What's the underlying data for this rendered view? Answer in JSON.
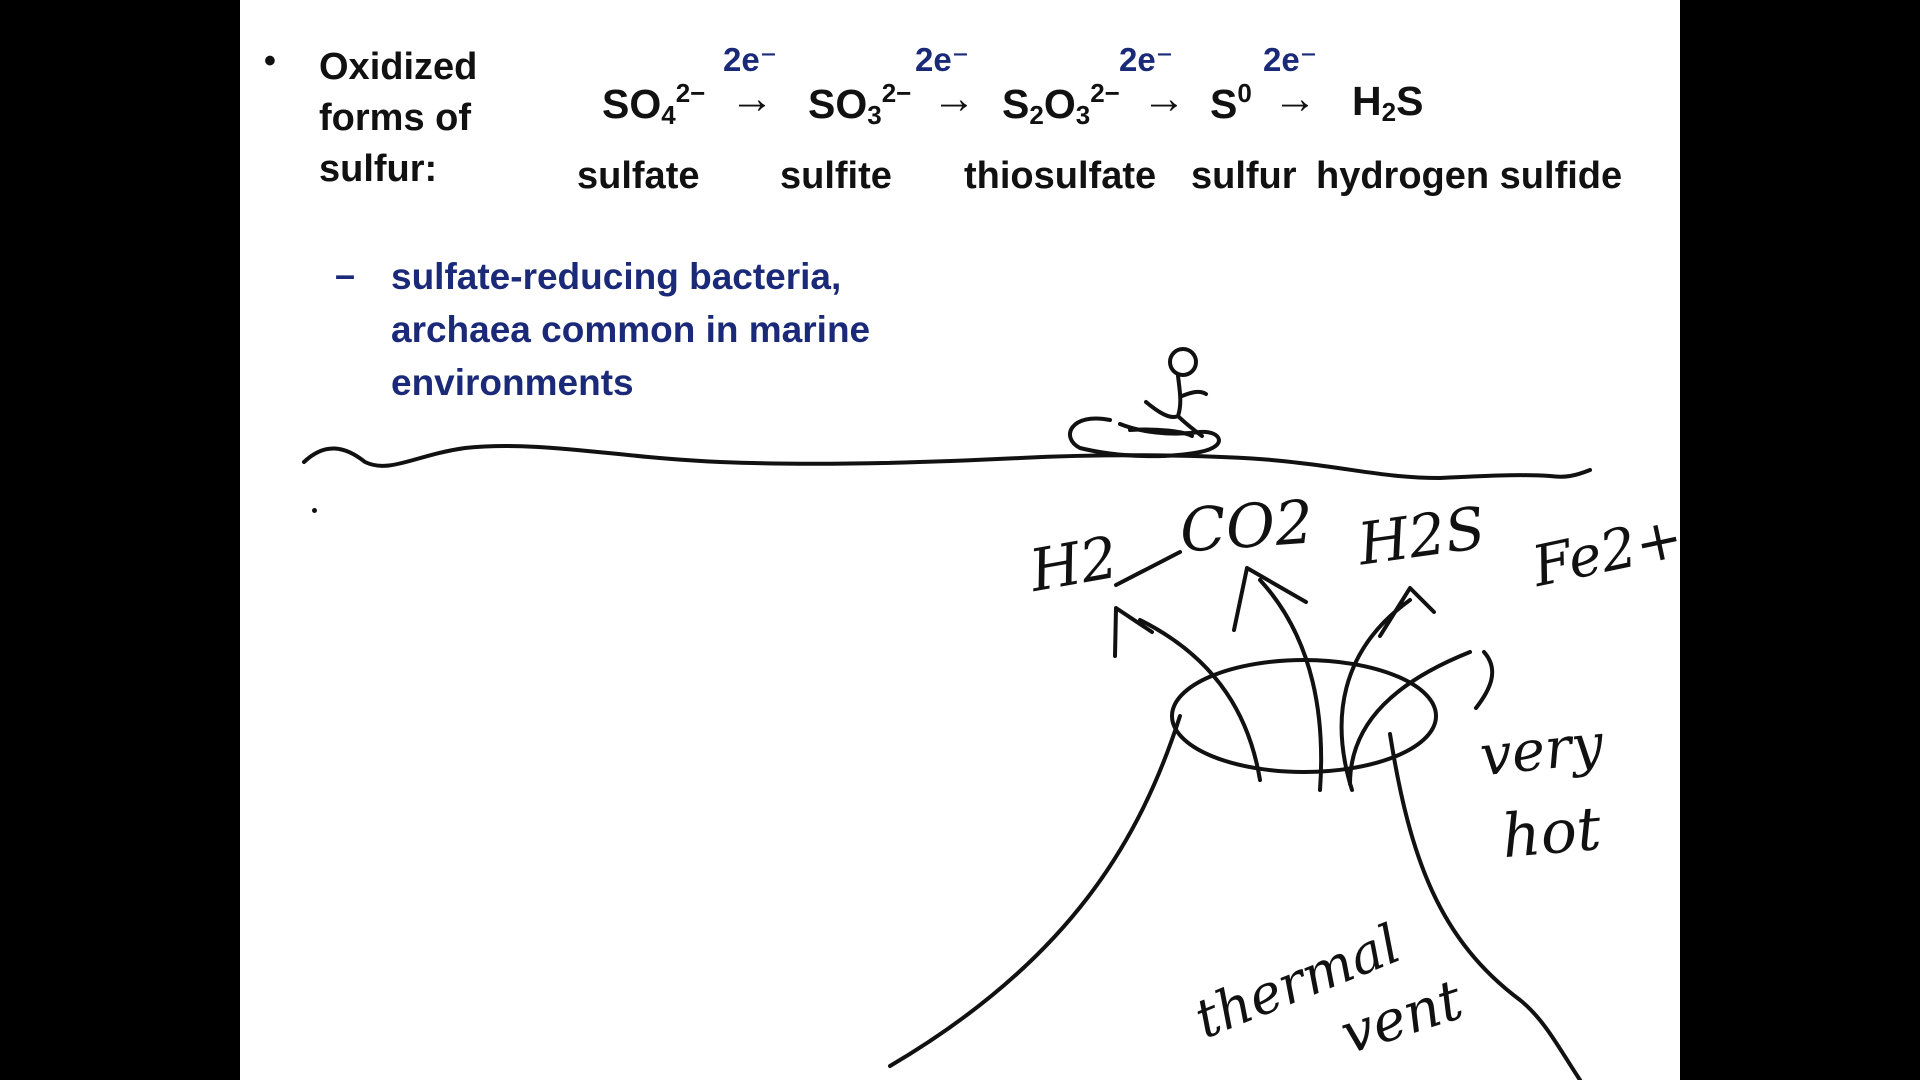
{
  "slide": {
    "bullet": "•",
    "heading_lines": [
      "Oxidized",
      "forms of",
      "sulfur:"
    ],
    "formulas": [
      {
        "base": "SO",
        "sub": "4",
        "sup": "2−"
      },
      {
        "base": "SO",
        "sub": "3",
        "sup": "2−"
      },
      {
        "base1": "S",
        "sub1": "2",
        "base2": "O",
        "sub2": "3",
        "sup": "2−"
      },
      {
        "base": "S",
        "sup": "0"
      },
      {
        "base1": "H",
        "sub1": "2",
        "base2": "S"
      }
    ],
    "electron_label": "2e⁻",
    "arrow": "→",
    "compound_names": [
      "sulfate",
      "sulfite",
      "thiosulfate",
      "sulfur",
      "hydrogen sulfide"
    ],
    "sub_bullet": {
      "dash": "–",
      "lines": [
        "sulfate-reducing bacteria,",
        "archaea common in marine",
        "environments"
      ]
    }
  },
  "annotations": {
    "h2": "H2",
    "co2": "CO2",
    "h2s": "H2S",
    "fe2": "Fe2+",
    "very": "very",
    "hot": "hot",
    "thermal": "thermal",
    "vent": "vent"
  },
  "colors": {
    "background": "#000000",
    "slide": "#ffffff",
    "text": "#111111",
    "accent_blue": "#1a2a78"
  }
}
